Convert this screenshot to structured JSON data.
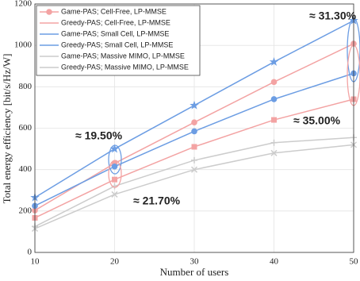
{
  "chart_data": {
    "type": "line",
    "xlabel": "Number of users",
    "ylabel": "Total energy efficiency [bit/s/Hz/W]",
    "x": [
      10,
      20,
      30,
      40,
      50
    ],
    "xlim": [
      10,
      50
    ],
    "xticks": [
      10,
      20,
      30,
      40,
      50
    ],
    "ylim": [
      0,
      1200
    ],
    "yticks": [
      0,
      200,
      400,
      600,
      800,
      1000,
      1200
    ],
    "grid": true,
    "legend": "upper left",
    "series": [
      {
        "name": "Game-PAS; Cell-Free, LP-MMSE",
        "color": "#f3a3a3",
        "marker": "circle",
        "values": [
          203,
          430,
          628,
          823,
          1008
        ]
      },
      {
        "name": "Greedy-PAS; Cell-Free, LP-MMSE",
        "color": "#f3a3a3",
        "marker": "square",
        "values": [
          167,
          352,
          510,
          640,
          740
        ]
      },
      {
        "name": "Game-PAS; Small Cell, LP-MMSE",
        "color": "#6c9de3",
        "marker": "star",
        "values": [
          265,
          500,
          710,
          920,
          1120
        ]
      },
      {
        "name": "Greedy-PAS; Small Cell, LP-MMSE",
        "color": "#6c9de3",
        "marker": "circle",
        "values": [
          225,
          415,
          585,
          740,
          865
        ]
      },
      {
        "name": "Game-PAS; Massive MIMO, LP-MMSE",
        "color": "#cccccc",
        "marker": "plus",
        "values": [
          125,
          320,
          445,
          530,
          555
        ]
      },
      {
        "name": "Greedy-PAS; Massive MIMO, LP-MMSE",
        "color": "#cccccc",
        "marker": "x",
        "values": [
          115,
          280,
          400,
          480,
          520
        ]
      }
    ],
    "annotations": [
      {
        "text": "≈ 31.30%",
        "color": "#6c9de3"
      },
      {
        "text": "≈ 19.50%",
        "color": "#6c9de3"
      },
      {
        "text": "≈ 21.70%",
        "color": "#f3a3a3"
      },
      {
        "text": "≈ 35.00%",
        "color": "#f3a3a3"
      }
    ]
  }
}
